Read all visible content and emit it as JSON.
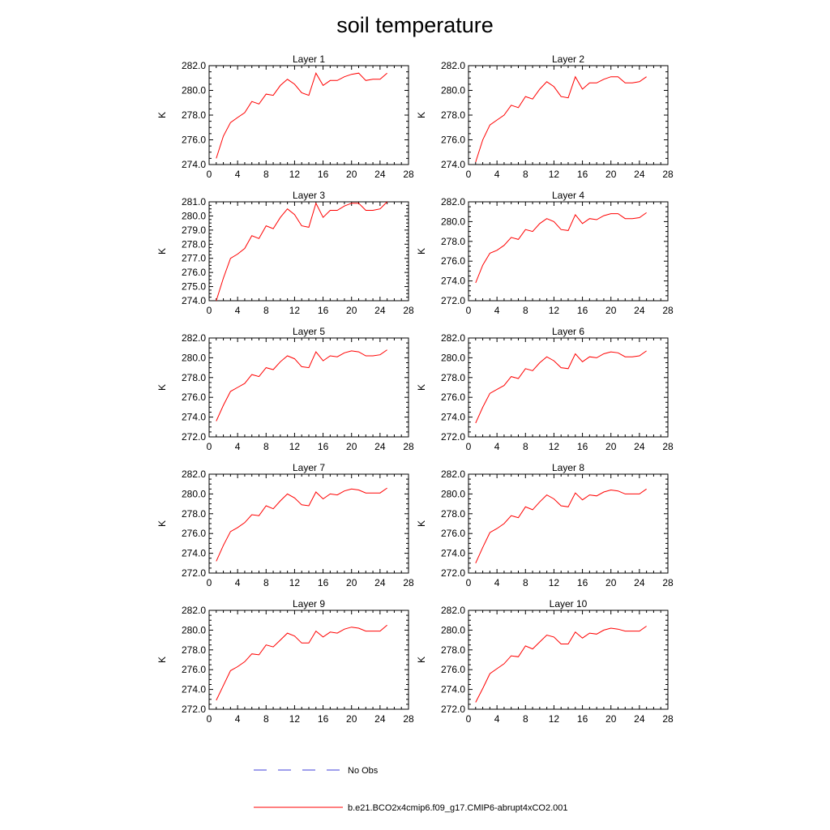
{
  "title": "soil temperature",
  "colors": {
    "model": "#ff0000",
    "obs": "#3f3fd8",
    "axis": "#000000"
  },
  "legend": [
    {
      "label": "No Obs",
      "style": "dashed",
      "color": "#3f3fd8"
    },
    {
      "label": "b.e21.BCO2x4cmip6.f09_g17.CMIP6-abrupt4xCO2.001",
      "style": "solid",
      "color": "#ff0000"
    }
  ],
  "chart_data": [
    {
      "type": "line",
      "title": "Layer 1",
      "ylabel": "K",
      "xlim": [
        0,
        28
      ],
      "ylim": [
        274,
        282
      ],
      "xticks": [
        0,
        4,
        8,
        12,
        16,
        20,
        24,
        28
      ],
      "yticks": [
        274,
        276,
        278,
        280,
        282
      ],
      "series": [
        {
          "x": [
            1,
            2,
            3,
            4,
            5,
            6,
            7,
            8,
            9,
            10,
            11,
            12,
            13,
            14,
            15,
            16,
            17,
            18,
            19,
            20,
            21,
            22,
            23,
            24,
            25
          ],
          "values": [
            274.5,
            276.3,
            277.4,
            277.8,
            278.2,
            279.1,
            278.9,
            279.7,
            279.6,
            280.4,
            280.9,
            280.5,
            279.8,
            279.6,
            281.4,
            280.4,
            280.8,
            280.8,
            281.1,
            281.3,
            281.4,
            280.8,
            280.9,
            280.9,
            281.4
          ]
        }
      ]
    },
    {
      "type": "line",
      "title": "Layer 2",
      "ylabel": "K",
      "xlim": [
        0,
        28
      ],
      "ylim": [
        274,
        282
      ],
      "xticks": [
        0,
        4,
        8,
        12,
        16,
        20,
        24,
        28
      ],
      "yticks": [
        274,
        276,
        278,
        280,
        282
      ],
      "series": [
        {
          "x": [
            1,
            2,
            3,
            4,
            5,
            6,
            7,
            8,
            9,
            10,
            11,
            12,
            13,
            14,
            15,
            16,
            17,
            18,
            19,
            20,
            21,
            22,
            23,
            24,
            25
          ],
          "values": [
            274.2,
            276.0,
            277.2,
            277.6,
            278.0,
            278.8,
            278.6,
            279.5,
            279.3,
            280.1,
            280.7,
            280.3,
            279.5,
            279.4,
            281.1,
            280.1,
            280.6,
            280.6,
            280.9,
            281.1,
            281.1,
            280.6,
            280.6,
            280.7,
            281.1
          ]
        }
      ]
    },
    {
      "type": "line",
      "title": "Layer 3",
      "ylabel": "K",
      "xlim": [
        0,
        28
      ],
      "ylim": [
        274,
        281
      ],
      "xticks": [
        0,
        4,
        8,
        12,
        16,
        20,
        24,
        28
      ],
      "yticks": [
        274,
        275,
        276,
        277,
        278,
        279,
        280,
        281
      ],
      "series": [
        {
          "x": [
            1,
            2,
            3,
            4,
            5,
            6,
            7,
            8,
            9,
            10,
            11,
            12,
            13,
            14,
            15,
            16,
            17,
            18,
            19,
            20,
            21,
            22,
            23,
            24,
            25
          ],
          "values": [
            274.0,
            275.6,
            277.0,
            277.3,
            277.7,
            278.6,
            278.4,
            279.3,
            279.1,
            279.9,
            280.5,
            280.1,
            279.3,
            279.2,
            280.9,
            279.9,
            280.4,
            280.4,
            280.7,
            280.9,
            280.9,
            280.4,
            280.4,
            280.5,
            281.0
          ]
        }
      ]
    },
    {
      "type": "line",
      "title": "Layer 4",
      "ylabel": "K",
      "xlim": [
        0,
        28
      ],
      "ylim": [
        272,
        282
      ],
      "xticks": [
        0,
        4,
        8,
        12,
        16,
        20,
        24,
        28
      ],
      "yticks": [
        272,
        274,
        276,
        278,
        280,
        282
      ],
      "series": [
        {
          "x": [
            1,
            2,
            3,
            4,
            5,
            6,
            7,
            8,
            9,
            10,
            11,
            12,
            13,
            14,
            15,
            16,
            17,
            18,
            19,
            20,
            21,
            22,
            23,
            24,
            25
          ],
          "values": [
            273.8,
            275.6,
            276.8,
            277.1,
            277.6,
            278.4,
            278.2,
            279.2,
            279.0,
            279.8,
            280.3,
            280.0,
            279.2,
            279.1,
            280.7,
            279.8,
            280.3,
            280.2,
            280.6,
            280.8,
            280.8,
            280.3,
            280.3,
            280.4,
            280.9
          ]
        }
      ]
    },
    {
      "type": "line",
      "title": "Layer 5",
      "ylabel": "K",
      "xlim": [
        0,
        28
      ],
      "ylim": [
        272,
        282
      ],
      "xticks": [
        0,
        4,
        8,
        12,
        16,
        20,
        24,
        28
      ],
      "yticks": [
        272,
        274,
        276,
        278,
        280,
        282
      ],
      "series": [
        {
          "x": [
            1,
            2,
            3,
            4,
            5,
            6,
            7,
            8,
            9,
            10,
            11,
            12,
            13,
            14,
            15,
            16,
            17,
            18,
            19,
            20,
            21,
            22,
            23,
            24,
            25
          ],
          "values": [
            273.6,
            275.2,
            276.6,
            277.0,
            277.4,
            278.3,
            278.1,
            279.0,
            278.8,
            279.6,
            280.2,
            279.9,
            279.1,
            279.0,
            280.6,
            279.7,
            280.2,
            280.1,
            280.5,
            280.7,
            280.6,
            280.2,
            280.2,
            280.3,
            280.8
          ]
        }
      ]
    },
    {
      "type": "line",
      "title": "Layer 6",
      "ylabel": "K",
      "xlim": [
        0,
        28
      ],
      "ylim": [
        272,
        282
      ],
      "xticks": [
        0,
        4,
        8,
        12,
        16,
        20,
        24,
        28
      ],
      "yticks": [
        272,
        274,
        276,
        278,
        280,
        282
      ],
      "series": [
        {
          "x": [
            1,
            2,
            3,
            4,
            5,
            6,
            7,
            8,
            9,
            10,
            11,
            12,
            13,
            14,
            15,
            16,
            17,
            18,
            19,
            20,
            21,
            22,
            23,
            24,
            25
          ],
          "values": [
            273.4,
            275.0,
            276.4,
            276.8,
            277.2,
            278.1,
            277.9,
            278.9,
            278.7,
            279.5,
            280.1,
            279.7,
            279.0,
            278.9,
            280.4,
            279.6,
            280.1,
            280.0,
            280.4,
            280.6,
            280.5,
            280.1,
            280.1,
            280.2,
            280.7
          ]
        }
      ]
    },
    {
      "type": "line",
      "title": "Layer 7",
      "ylabel": "K",
      "xlim": [
        0,
        28
      ],
      "ylim": [
        272,
        282
      ],
      "xticks": [
        0,
        4,
        8,
        12,
        16,
        20,
        24,
        28
      ],
      "yticks": [
        272,
        274,
        276,
        278,
        280,
        282
      ],
      "series": [
        {
          "x": [
            1,
            2,
            3,
            4,
            5,
            6,
            7,
            8,
            9,
            10,
            11,
            12,
            13,
            14,
            15,
            16,
            17,
            18,
            19,
            20,
            21,
            22,
            23,
            24,
            25
          ],
          "values": [
            273.2,
            274.8,
            276.2,
            276.6,
            277.1,
            277.9,
            277.8,
            278.8,
            278.5,
            279.3,
            280.0,
            279.6,
            278.9,
            278.8,
            280.2,
            279.5,
            280.0,
            279.9,
            280.3,
            280.5,
            280.4,
            280.1,
            280.1,
            280.1,
            280.6
          ]
        }
      ]
    },
    {
      "type": "line",
      "title": "Layer 8",
      "ylabel": "K",
      "xlim": [
        0,
        28
      ],
      "ylim": [
        272,
        282
      ],
      "xticks": [
        0,
        4,
        8,
        12,
        16,
        20,
        24,
        28
      ],
      "yticks": [
        272,
        274,
        276,
        278,
        280,
        282
      ],
      "series": [
        {
          "x": [
            1,
            2,
            3,
            4,
            5,
            6,
            7,
            8,
            9,
            10,
            11,
            12,
            13,
            14,
            15,
            16,
            17,
            18,
            19,
            20,
            21,
            22,
            23,
            24,
            25
          ],
          "values": [
            273.0,
            274.6,
            276.1,
            276.5,
            277.0,
            277.8,
            277.6,
            278.7,
            278.4,
            279.2,
            279.9,
            279.5,
            278.8,
            278.7,
            280.1,
            279.4,
            279.9,
            279.8,
            280.2,
            280.4,
            280.3,
            280.0,
            280.0,
            280.0,
            280.5
          ]
        }
      ]
    },
    {
      "type": "line",
      "title": "Layer 9",
      "ylabel": "K",
      "xlim": [
        0,
        28
      ],
      "ylim": [
        272,
        282
      ],
      "xticks": [
        0,
        4,
        8,
        12,
        16,
        20,
        24,
        28
      ],
      "yticks": [
        272,
        274,
        276,
        278,
        280,
        282
      ],
      "series": [
        {
          "x": [
            1,
            2,
            3,
            4,
            5,
            6,
            7,
            8,
            9,
            10,
            11,
            12,
            13,
            14,
            15,
            16,
            17,
            18,
            19,
            20,
            21,
            22,
            23,
            24,
            25
          ],
          "values": [
            272.9,
            274.4,
            275.9,
            276.3,
            276.8,
            277.6,
            277.5,
            278.5,
            278.3,
            279.0,
            279.7,
            279.4,
            278.7,
            278.7,
            279.9,
            279.3,
            279.8,
            279.7,
            280.1,
            280.3,
            280.2,
            279.9,
            279.9,
            279.9,
            280.5
          ]
        }
      ]
    },
    {
      "type": "line",
      "title": "Layer 10",
      "ylabel": "K",
      "xlim": [
        0,
        28
      ],
      "ylim": [
        272,
        282
      ],
      "xticks": [
        0,
        4,
        8,
        12,
        16,
        20,
        24,
        28
      ],
      "yticks": [
        272,
        274,
        276,
        278,
        280,
        282
      ],
      "series": [
        {
          "x": [
            1,
            2,
            3,
            4,
            5,
            6,
            7,
            8,
            9,
            10,
            11,
            12,
            13,
            14,
            15,
            16,
            17,
            18,
            19,
            20,
            21,
            22,
            23,
            24,
            25
          ],
          "values": [
            272.7,
            274.1,
            275.6,
            276.1,
            276.6,
            277.4,
            277.3,
            278.4,
            278.1,
            278.8,
            279.5,
            279.3,
            278.6,
            278.6,
            279.8,
            279.2,
            279.7,
            279.6,
            280.0,
            280.2,
            280.1,
            279.9,
            279.9,
            279.9,
            280.4
          ]
        }
      ]
    }
  ]
}
